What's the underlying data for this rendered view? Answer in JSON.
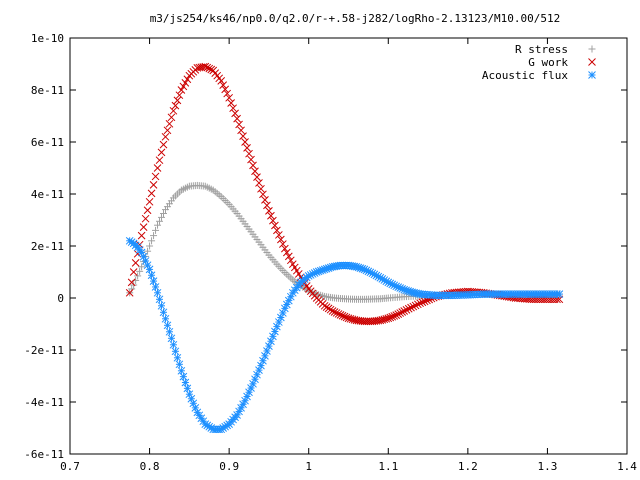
{
  "chart_data": {
    "type": "scatter",
    "title": "m3/js254/ks46/np0.0/q2.0/r-+.58-j282/logRho-2.13123/M10.00/512",
    "xlabel": "",
    "ylabel": "",
    "xlim": [
      0.7,
      1.4
    ],
    "ylim": [
      -6e-11,
      1e-10
    ],
    "x_ticks": [
      "0.7",
      "0.8",
      "0.9",
      "1",
      "1.1",
      "1.2",
      "1.3",
      "1.4"
    ],
    "x_tick_values": [
      0.7,
      0.8,
      0.9,
      1.0,
      1.1,
      1.2,
      1.3,
      1.4
    ],
    "y_ticks": [
      "-6e-11",
      "-4e-11",
      "-2e-11",
      "0",
      "2e-11",
      "4e-11",
      "6e-11",
      "8e-11",
      "1e-10"
    ],
    "y_tick_values": [
      -6e-11,
      -4e-11,
      -2e-11,
      0,
      2e-11,
      4e-11,
      6e-11,
      8e-11,
      1e-10
    ],
    "grid": false,
    "legend_position": "top-right",
    "series": [
      {
        "name": "R stress",
        "marker": "plus",
        "color": "#a0a0a0",
        "x": [
          0.775,
          0.78,
          0.79,
          0.8,
          0.81,
          0.82,
          0.83,
          0.84,
          0.85,
          0.86,
          0.87,
          0.88,
          0.89,
          0.9,
          0.91,
          0.92,
          0.93,
          0.94,
          0.95,
          0.96,
          0.97,
          0.98,
          0.99,
          1.0,
          1.01,
          1.02,
          1.03,
          1.04,
          1.05,
          1.06,
          1.07,
          1.08,
          1.09,
          1.1,
          1.12,
          1.14,
          1.16,
          1.18,
          1.2,
          1.22,
          1.24,
          1.26,
          1.28,
          1.3,
          1.315
        ],
        "y": [
          2e-12,
          5e-12,
          1.2e-11,
          2e-11,
          2.8e-11,
          3.4e-11,
          3.85e-11,
          4.15e-11,
          4.3e-11,
          4.33e-11,
          4.3e-11,
          4.15e-11,
          3.9e-11,
          3.6e-11,
          3.25e-11,
          2.85e-11,
          2.45e-11,
          2.05e-11,
          1.65e-11,
          1.3e-11,
          9.8e-12,
          7e-12,
          4.6e-12,
          2.8e-12,
          1.5e-12,
          6e-13,
          1e-13,
          -2e-13,
          -4e-13,
          -5e-13,
          -5e-13,
          -4e-13,
          -3e-13,
          0.0,
          5e-13,
          8e-13,
          1e-12,
          1.2e-12,
          1.5e-12,
          1.5e-12,
          1.5e-12,
          1.5e-12,
          1.5e-12,
          1.5e-12,
          1.5e-12
        ]
      },
      {
        "name": "G work",
        "marker": "cross",
        "color": "#cc0000",
        "x": [
          0.775,
          0.78,
          0.79,
          0.8,
          0.81,
          0.82,
          0.83,
          0.84,
          0.85,
          0.86,
          0.87,
          0.88,
          0.89,
          0.9,
          0.91,
          0.92,
          0.93,
          0.94,
          0.95,
          0.96,
          0.97,
          0.98,
          0.99,
          1.0,
          1.01,
          1.02,
          1.03,
          1.04,
          1.05,
          1.06,
          1.07,
          1.08,
          1.09,
          1.1,
          1.11,
          1.12,
          1.14,
          1.16,
          1.18,
          1.2,
          1.22,
          1.24,
          1.26,
          1.28,
          1.3,
          1.315
        ],
        "y": [
          2e-12,
          1e-11,
          2.4e-11,
          3.7e-11,
          5e-11,
          6.2e-11,
          7.2e-11,
          8e-11,
          8.55e-11,
          8.85e-11,
          8.9e-11,
          8.75e-11,
          8.35e-11,
          7.7e-11,
          6.9e-11,
          6e-11,
          5.1e-11,
          4.2e-11,
          3.35e-11,
          2.6e-11,
          1.9e-11,
          1.3e-11,
          8e-12,
          3.5e-12,
          0.0,
          -3e-12,
          -5e-12,
          -6.5e-12,
          -7.8e-12,
          -8.6e-12,
          -9e-12,
          -9e-12,
          -8.6e-12,
          -7.8e-12,
          -6.6e-12,
          -5e-12,
          -2e-12,
          5e-13,
          2e-12,
          2.5e-12,
          2e-12,
          1e-12,
          0.0,
          -5e-13,
          -5e-13,
          -5e-13
        ]
      },
      {
        "name": "Acoustic flux",
        "marker": "star",
        "color": "#1e90ff",
        "x": [
          0.775,
          0.78,
          0.785,
          0.79,
          0.8,
          0.81,
          0.82,
          0.83,
          0.84,
          0.85,
          0.86,
          0.87,
          0.88,
          0.89,
          0.9,
          0.91,
          0.92,
          0.93,
          0.94,
          0.95,
          0.96,
          0.97,
          0.98,
          0.99,
          1.0,
          1.01,
          1.02,
          1.03,
          1.04,
          1.05,
          1.06,
          1.07,
          1.08,
          1.09,
          1.1,
          1.11,
          1.12,
          1.13,
          1.14,
          1.16,
          1.18,
          1.2,
          1.22,
          1.24,
          1.26,
          1.28,
          1.3,
          1.315
        ],
        "y": [
          2.2e-11,
          2.1e-11,
          1.95e-11,
          1.75e-11,
          1.1e-11,
          2e-12,
          -8e-12,
          -1.8e-11,
          -2.8e-11,
          -3.7e-11,
          -4.4e-11,
          -4.85e-11,
          -5.05e-11,
          -5.05e-11,
          -4.85e-11,
          -4.5e-11,
          -3.95e-11,
          -3.3e-11,
          -2.6e-11,
          -1.85e-11,
          -1.1e-11,
          -4e-12,
          2e-12,
          6e-12,
          8.5e-12,
          1e-11,
          1.1e-11,
          1.2e-11,
          1.25e-11,
          1.25e-11,
          1.2e-11,
          1.1e-11,
          9.5e-12,
          7.8e-12,
          6e-12,
          4.5e-12,
          3.2e-12,
          2.2e-12,
          1.5e-12,
          1e-12,
          1e-12,
          1.2e-12,
          1.5e-12,
          1.5e-12,
          1.5e-12,
          1.5e-12,
          1.5e-12,
          1.5e-12
        ]
      }
    ]
  }
}
